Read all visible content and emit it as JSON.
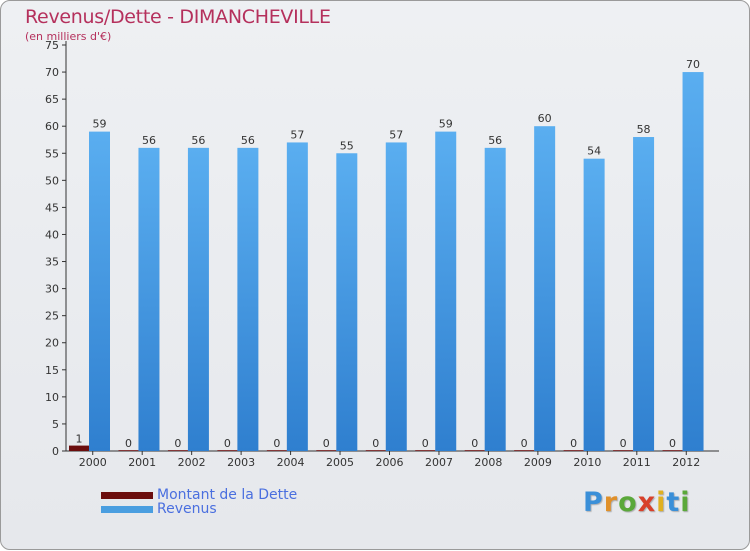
{
  "chart_data": {
    "type": "bar",
    "title": "Revenus/Dette - DIMANCHEVILLE",
    "subtitle": "(en milliers d'€)",
    "categories": [
      "2000",
      "2001",
      "2002",
      "2003",
      "2004",
      "2005",
      "2006",
      "2007",
      "2008",
      "2009",
      "2010",
      "2011",
      "2012"
    ],
    "series": [
      {
        "name": "Montant de la Dette",
        "color": "#6b0d0d",
        "values": [
          1,
          0,
          0,
          0,
          0,
          0,
          0,
          0,
          0,
          0,
          0,
          0,
          0
        ]
      },
      {
        "name": "Revenus",
        "color": "#4a9ee0",
        "values": [
          59,
          56,
          56,
          56,
          57,
          55,
          57,
          59,
          56,
          60,
          54,
          58,
          70
        ]
      }
    ],
    "ylim": [
      0,
      75
    ],
    "yticks": [
      0,
      5,
      10,
      15,
      20,
      25,
      30,
      35,
      40,
      45,
      50,
      55,
      60,
      65,
      70,
      75
    ],
    "grid": false,
    "legend_position": "bottom-left",
    "xlabel": "",
    "ylabel": ""
  },
  "logo": {
    "letters": [
      "P",
      "r",
      "o",
      "x",
      "i",
      "t",
      "i"
    ],
    "colors": [
      "#3a8fd8",
      "#e0902a",
      "#5aa83a",
      "#d8402a",
      "#e0b020",
      "#3a8fd8",
      "#5aa83a"
    ]
  }
}
